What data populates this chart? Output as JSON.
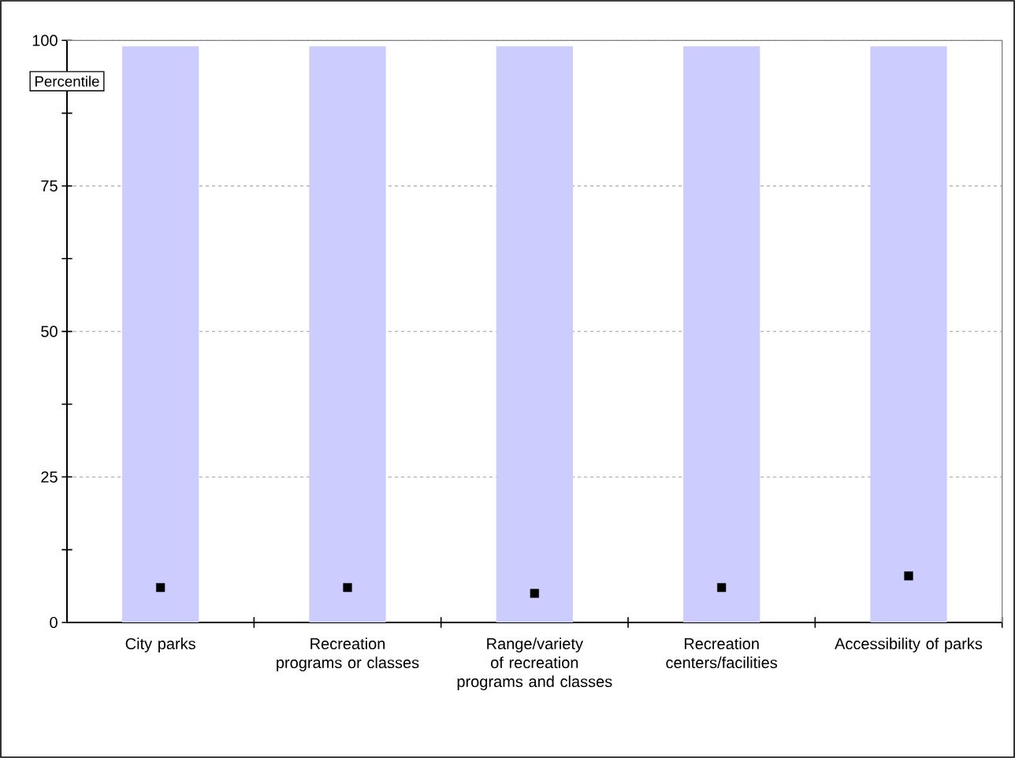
{
  "chart_data": {
    "type": "bar",
    "ylabel": "Percentile",
    "categories": [
      "City parks",
      "Recreation programs or classes",
      "Range/variety of recreation programs and classes",
      "Recreation centers/facilities",
      "Accessibility of parks"
    ],
    "series": [
      {
        "color": "#ccccff",
        "values": [
          99,
          99,
          99,
          99,
          99
        ]
      },
      {
        "type": "scatter",
        "marker": "square",
        "color": "#000000",
        "values": [
          6,
          6,
          5,
          6,
          8
        ]
      }
    ],
    "ylim": [
      0,
      100
    ],
    "yticks": [
      0,
      {
        "value": 12.5,
        "label": null
      },
      25,
      {
        "value": 37.5,
        "label": null
      },
      50,
      {
        "value": 62.5,
        "label": null
      },
      75,
      {
        "value": 87.5,
        "label": null
      },
      100
    ],
    "grid": "y"
  }
}
